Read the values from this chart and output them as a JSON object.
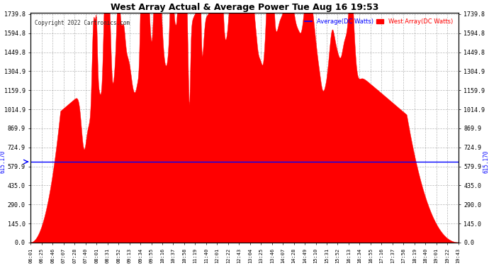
{
  "title": "West Array Actual & Average Power Tue Aug 16 19:53",
  "copyright": "Copyright 2022 Cartronics.com",
  "legend_avg": "Average(DC Watts)",
  "legend_west": "West Array(DC Watts)",
  "avg_value": 615.17,
  "avg_label": "615.170",
  "yticks": [
    0.0,
    145.0,
    290.0,
    435.0,
    579.9,
    724.9,
    869.9,
    1014.9,
    1159.9,
    1304.9,
    1449.8,
    1594.8,
    1739.8
  ],
  "ymax": 1739.8,
  "ymin": 0.0,
  "title_color": "#000000",
  "copyright_color": "#000000",
  "avg_line_color": "#0000ff",
  "fill_color": "#ff0000",
  "grid_color": "#888888",
  "background_color": "#ffffff",
  "xtick_labels": [
    "06:01",
    "06:25",
    "06:46",
    "07:07",
    "07:28",
    "07:40",
    "08:01",
    "08:31",
    "08:52",
    "09:13",
    "09:34",
    "09:55",
    "10:16",
    "10:37",
    "10:58",
    "11:19",
    "11:40",
    "12:01",
    "12:22",
    "12:43",
    "13:04",
    "13:25",
    "13:46",
    "14:07",
    "14:28",
    "14:49",
    "15:10",
    "15:31",
    "15:52",
    "16:13",
    "16:34",
    "16:55",
    "17:16",
    "17:37",
    "17:58",
    "18:19",
    "18:40",
    "19:01",
    "19:22",
    "19:43"
  ]
}
